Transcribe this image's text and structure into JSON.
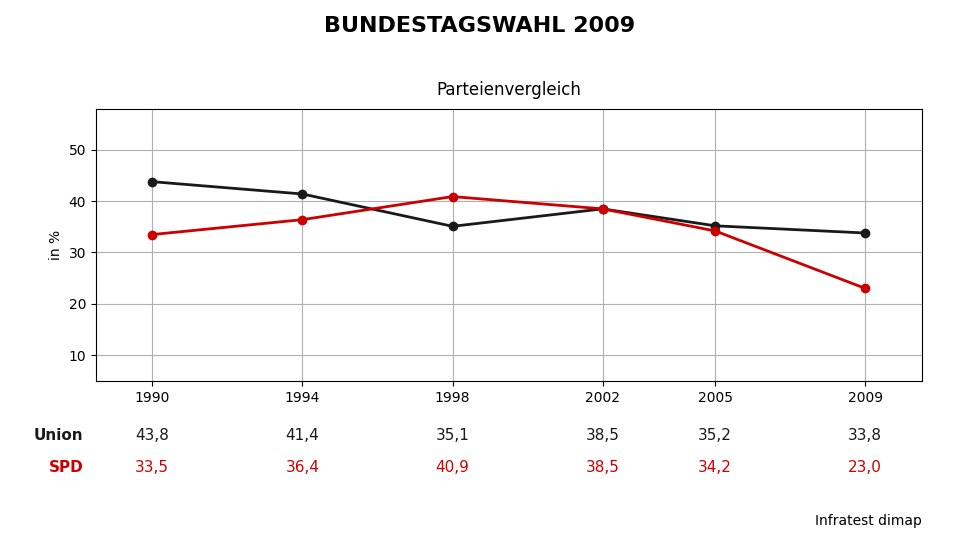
{
  "chart_data": {
    "type": "line",
    "title": "BUNDESTAGSWAHL 2009",
    "subtitle": "Parteienvergleich",
    "y_label": "in %",
    "source": "Infratest dimap",
    "x": [
      1990,
      1994,
      1998,
      2002,
      2005,
      2009
    ],
    "series": [
      {
        "name": "Union",
        "color": "#1a1a1a",
        "marker": "o",
        "values": [
          43.8,
          41.4,
          35.1,
          38.5,
          35.2,
          33.8
        ],
        "value_labels": [
          "43,8",
          "41,4",
          "35,1",
          "38,5",
          "35,2",
          "33,8"
        ]
      },
      {
        "name": "SPD",
        "color": "#cc0000",
        "marker": "o",
        "values": [
          33.5,
          36.4,
          40.9,
          38.5,
          34.2,
          23.0
        ],
        "value_labels": [
          "33,5",
          "36,4",
          "40,9",
          "38,5",
          "34,2",
          "23,0"
        ]
      }
    ],
    "xlim": [
      1988.5,
      2010.5
    ],
    "xticks": [
      1990,
      1994,
      1998,
      2002,
      2005,
      2009
    ],
    "ylim": [
      5,
      58
    ],
    "yticks": [
      10,
      20,
      30,
      40,
      50
    ],
    "grid": true,
    "data_labels": true
  }
}
